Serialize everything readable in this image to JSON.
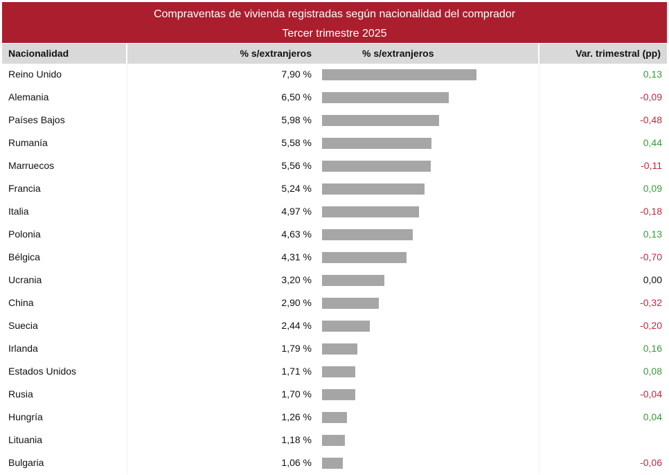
{
  "chart_data": {
    "type": "table",
    "title": "Compraventas de vivienda registradas según nacionalidad del comprador",
    "subtitle": "Tercer trimestre 2025",
    "columns": [
      "Nacionalidad",
      "% s/extranjeros",
      "% s/extranjeros",
      "Var. trimestral (pp)"
    ],
    "rows": [
      {
        "name": "Reino Unido",
        "value": 7.9,
        "pct": "7,90 %",
        "var": "0,13"
      },
      {
        "name": "Alemania",
        "value": 6.5,
        "pct": "6,50 %",
        "var": "-0,09"
      },
      {
        "name": "Países Bajos",
        "value": 5.98,
        "pct": "5,98 %",
        "var": "-0,48"
      },
      {
        "name": "Rumanía",
        "value": 5.58,
        "pct": "5,58 %",
        "var": "0,44"
      },
      {
        "name": "Marruecos",
        "value": 5.56,
        "pct": "5,56 %",
        "var": "-0,11"
      },
      {
        "name": "Francia",
        "value": 5.24,
        "pct": "5,24 %",
        "var": "0,09"
      },
      {
        "name": "Italia",
        "value": 4.97,
        "pct": "4,97 %",
        "var": "-0,18"
      },
      {
        "name": "Polonia",
        "value": 4.63,
        "pct": "4,63 %",
        "var": "0,13"
      },
      {
        "name": "Bélgica",
        "value": 4.31,
        "pct": "4,31 %",
        "var": "-0,70"
      },
      {
        "name": "Ucrania",
        "value": 3.2,
        "pct": "3,20 %",
        "var": "0,00"
      },
      {
        "name": "China",
        "value": 2.9,
        "pct": "2,90 %",
        "var": "-0,32"
      },
      {
        "name": "Suecia",
        "value": 2.44,
        "pct": "2,44 %",
        "var": "-0,20"
      },
      {
        "name": "Irlanda",
        "value": 1.79,
        "pct": "1,79 %",
        "var": "0,16"
      },
      {
        "name": "Estados Unidos",
        "value": 1.71,
        "pct": "1,71 %",
        "var": "0,08"
      },
      {
        "name": "Rusia",
        "value": 1.7,
        "pct": "1,70 %",
        "var": "-0,04"
      },
      {
        "name": "Hungría",
        "value": 1.26,
        "pct": "1,26 %",
        "var": "0,04"
      },
      {
        "name": "Lituania",
        "value": 1.18,
        "pct": "1,18 %",
        "var": ""
      },
      {
        "name": "Bulgaria",
        "value": 1.06,
        "pct": "1,06 %",
        "var": "-0,06"
      }
    ],
    "colors": {
      "header_bg": "#AB1E2D",
      "bar": "#A6A6A6",
      "positive": "#3A9A3A",
      "negative": "#C0283C",
      "zero": "#111111"
    }
  }
}
